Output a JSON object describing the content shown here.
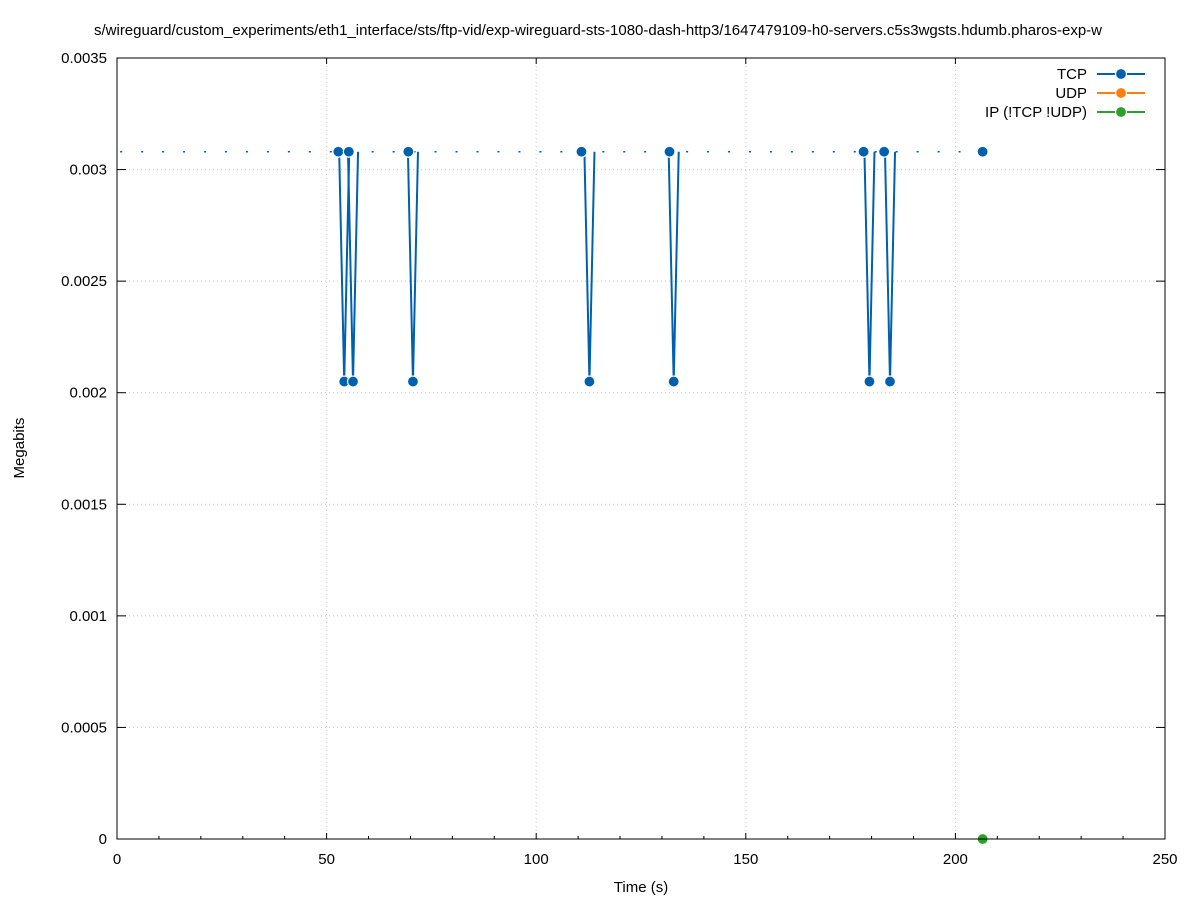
{
  "chart_data": {
    "type": "line",
    "title": "s/wireguard/custom_experiments/eth1_interface/sts/ftp-vid/exp-wireguard-sts-1080-dash-http3/1647479109-h0-servers.c5s3wgsts.hdumb.pharos-exp-w",
    "xlabel": "Time (s)",
    "ylabel": "Megabits",
    "xlim": [
      0,
      250
    ],
    "ylim": [
      0,
      0.0035
    ],
    "x_ticks": [
      0,
      50,
      100,
      150,
      200,
      250
    ],
    "y_ticks": [
      0,
      0.0005,
      0.001,
      0.0015,
      0.002,
      0.0025,
      0.003,
      0.0035
    ],
    "x_tick_labels": [
      "0",
      "50",
      "100",
      "150",
      "200",
      "250"
    ],
    "y_tick_labels": [
      "0",
      "0.0005",
      "0.001",
      "0.0015",
      "0.002",
      "0.0025",
      "0.003",
      "0.0035"
    ],
    "grid": true,
    "legend_position": "top-right",
    "series": [
      {
        "name": "TCP",
        "color": "#0060ad",
        "baseline_value": 0.00308,
        "baseline_x_range": [
          1,
          206.5
        ],
        "baseline_interval": 1,
        "x": [
          52.8,
          54.2,
          55.3,
          56.3,
          69.5,
          70.6,
          110.8,
          112.7,
          131.8,
          132.8,
          178.1,
          179.5,
          183.0,
          184.4,
          206.5
        ],
        "y": [
          0.00308,
          0.00205,
          0.00308,
          0.00205,
          0.00308,
          0.00205,
          0.00308,
          0.00205,
          0.00308,
          0.00205,
          0.00308,
          0.00205,
          0.00308,
          0.00205,
          0.00308
        ]
      },
      {
        "name": "UDP",
        "color": "#ff7f0e",
        "x": [],
        "y": []
      },
      {
        "name": "IP (!TCP  !UDP)",
        "color": "#2ca02c",
        "x": [
          206.5
        ],
        "y": [
          0
        ]
      }
    ]
  }
}
